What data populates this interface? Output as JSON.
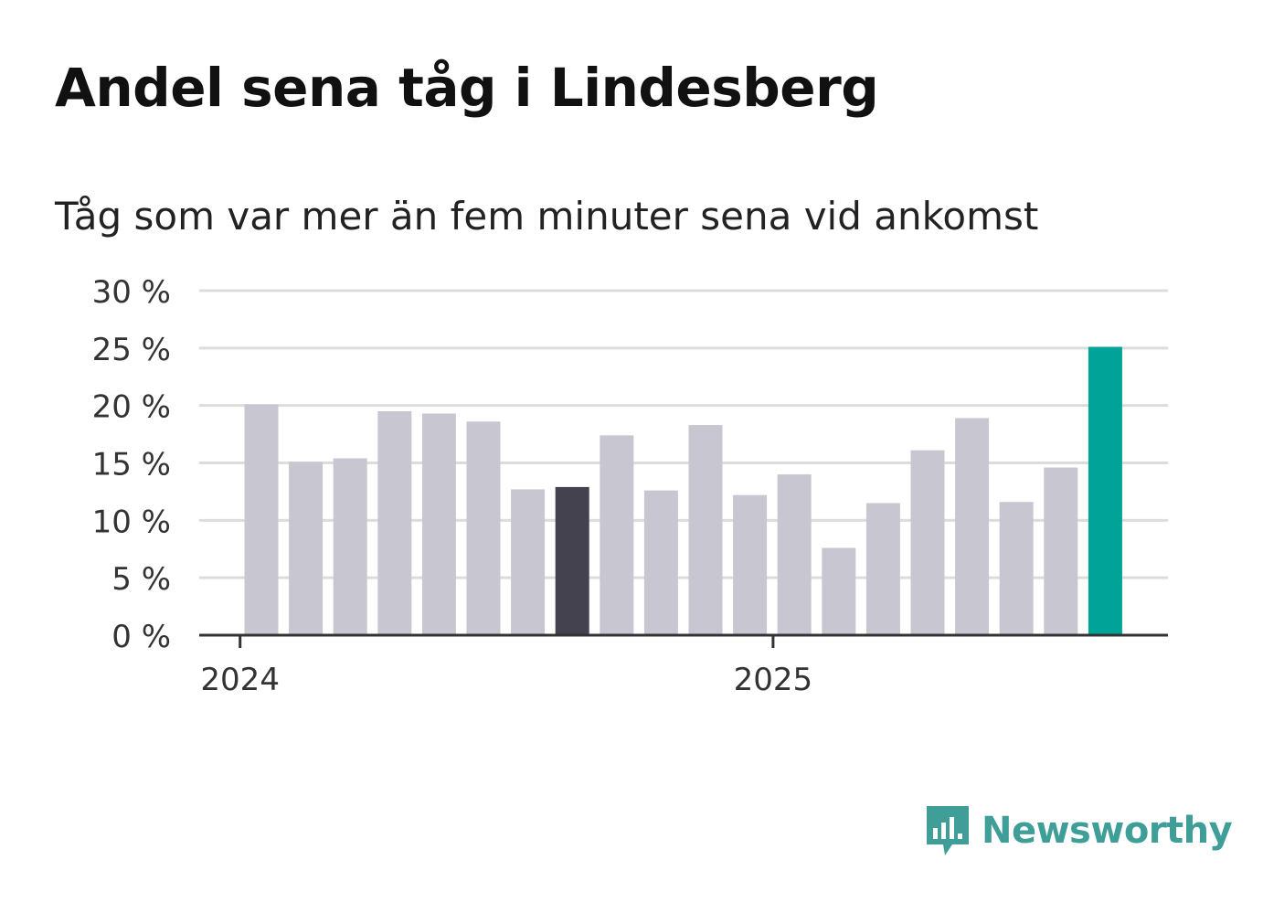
{
  "title": "Andel sena tåg i Lindesberg",
  "subtitle": "Tåg som var mer än fem minuter sena vid ankomst",
  "brand": {
    "name": "Newsworthy",
    "color": "#3f9e98"
  },
  "colors": {
    "bar": "#c8c7d1",
    "highlight": "#44424f",
    "latest": "#00a398",
    "grid": "#dcdcdc",
    "axis": "#333333"
  },
  "chart_data": {
    "type": "bar",
    "title": "Andel sena tåg i Lindesberg",
    "subtitle": "Tåg som var mer än fem minuter sena vid ankomst",
    "xlabel": "",
    "ylabel": "",
    "ylim": [
      0,
      30
    ],
    "yticks": [
      0,
      5,
      10,
      15,
      20,
      25,
      30
    ],
    "ytick_labels": [
      "0 %",
      "5 %",
      "10 %",
      "15 %",
      "20 %",
      "25 %",
      "30 %"
    ],
    "categories": [
      "2024-01",
      "2024-02",
      "2024-03",
      "2024-04",
      "2024-05",
      "2024-06",
      "2024-07",
      "2024-08",
      "2024-09",
      "2024-10",
      "2024-11",
      "2024-12",
      "2025-01",
      "2025-02",
      "2025-03",
      "2025-04",
      "2025-05",
      "2025-06",
      "2025-07",
      "2025-08"
    ],
    "values": [
      20.1,
      15.1,
      15.4,
      19.5,
      19.3,
      18.6,
      12.7,
      12.9,
      17.4,
      12.6,
      18.3,
      12.2,
      14.0,
      7.6,
      11.5,
      16.1,
      18.9,
      11.6,
      14.6,
      25.1
    ],
    "highlight_index": 7,
    "latest_index": 19,
    "xticks": [
      {
        "label": "2024",
        "category_index": 0
      },
      {
        "label": "2025",
        "category_index": 12
      }
    ],
    "grid": true
  }
}
